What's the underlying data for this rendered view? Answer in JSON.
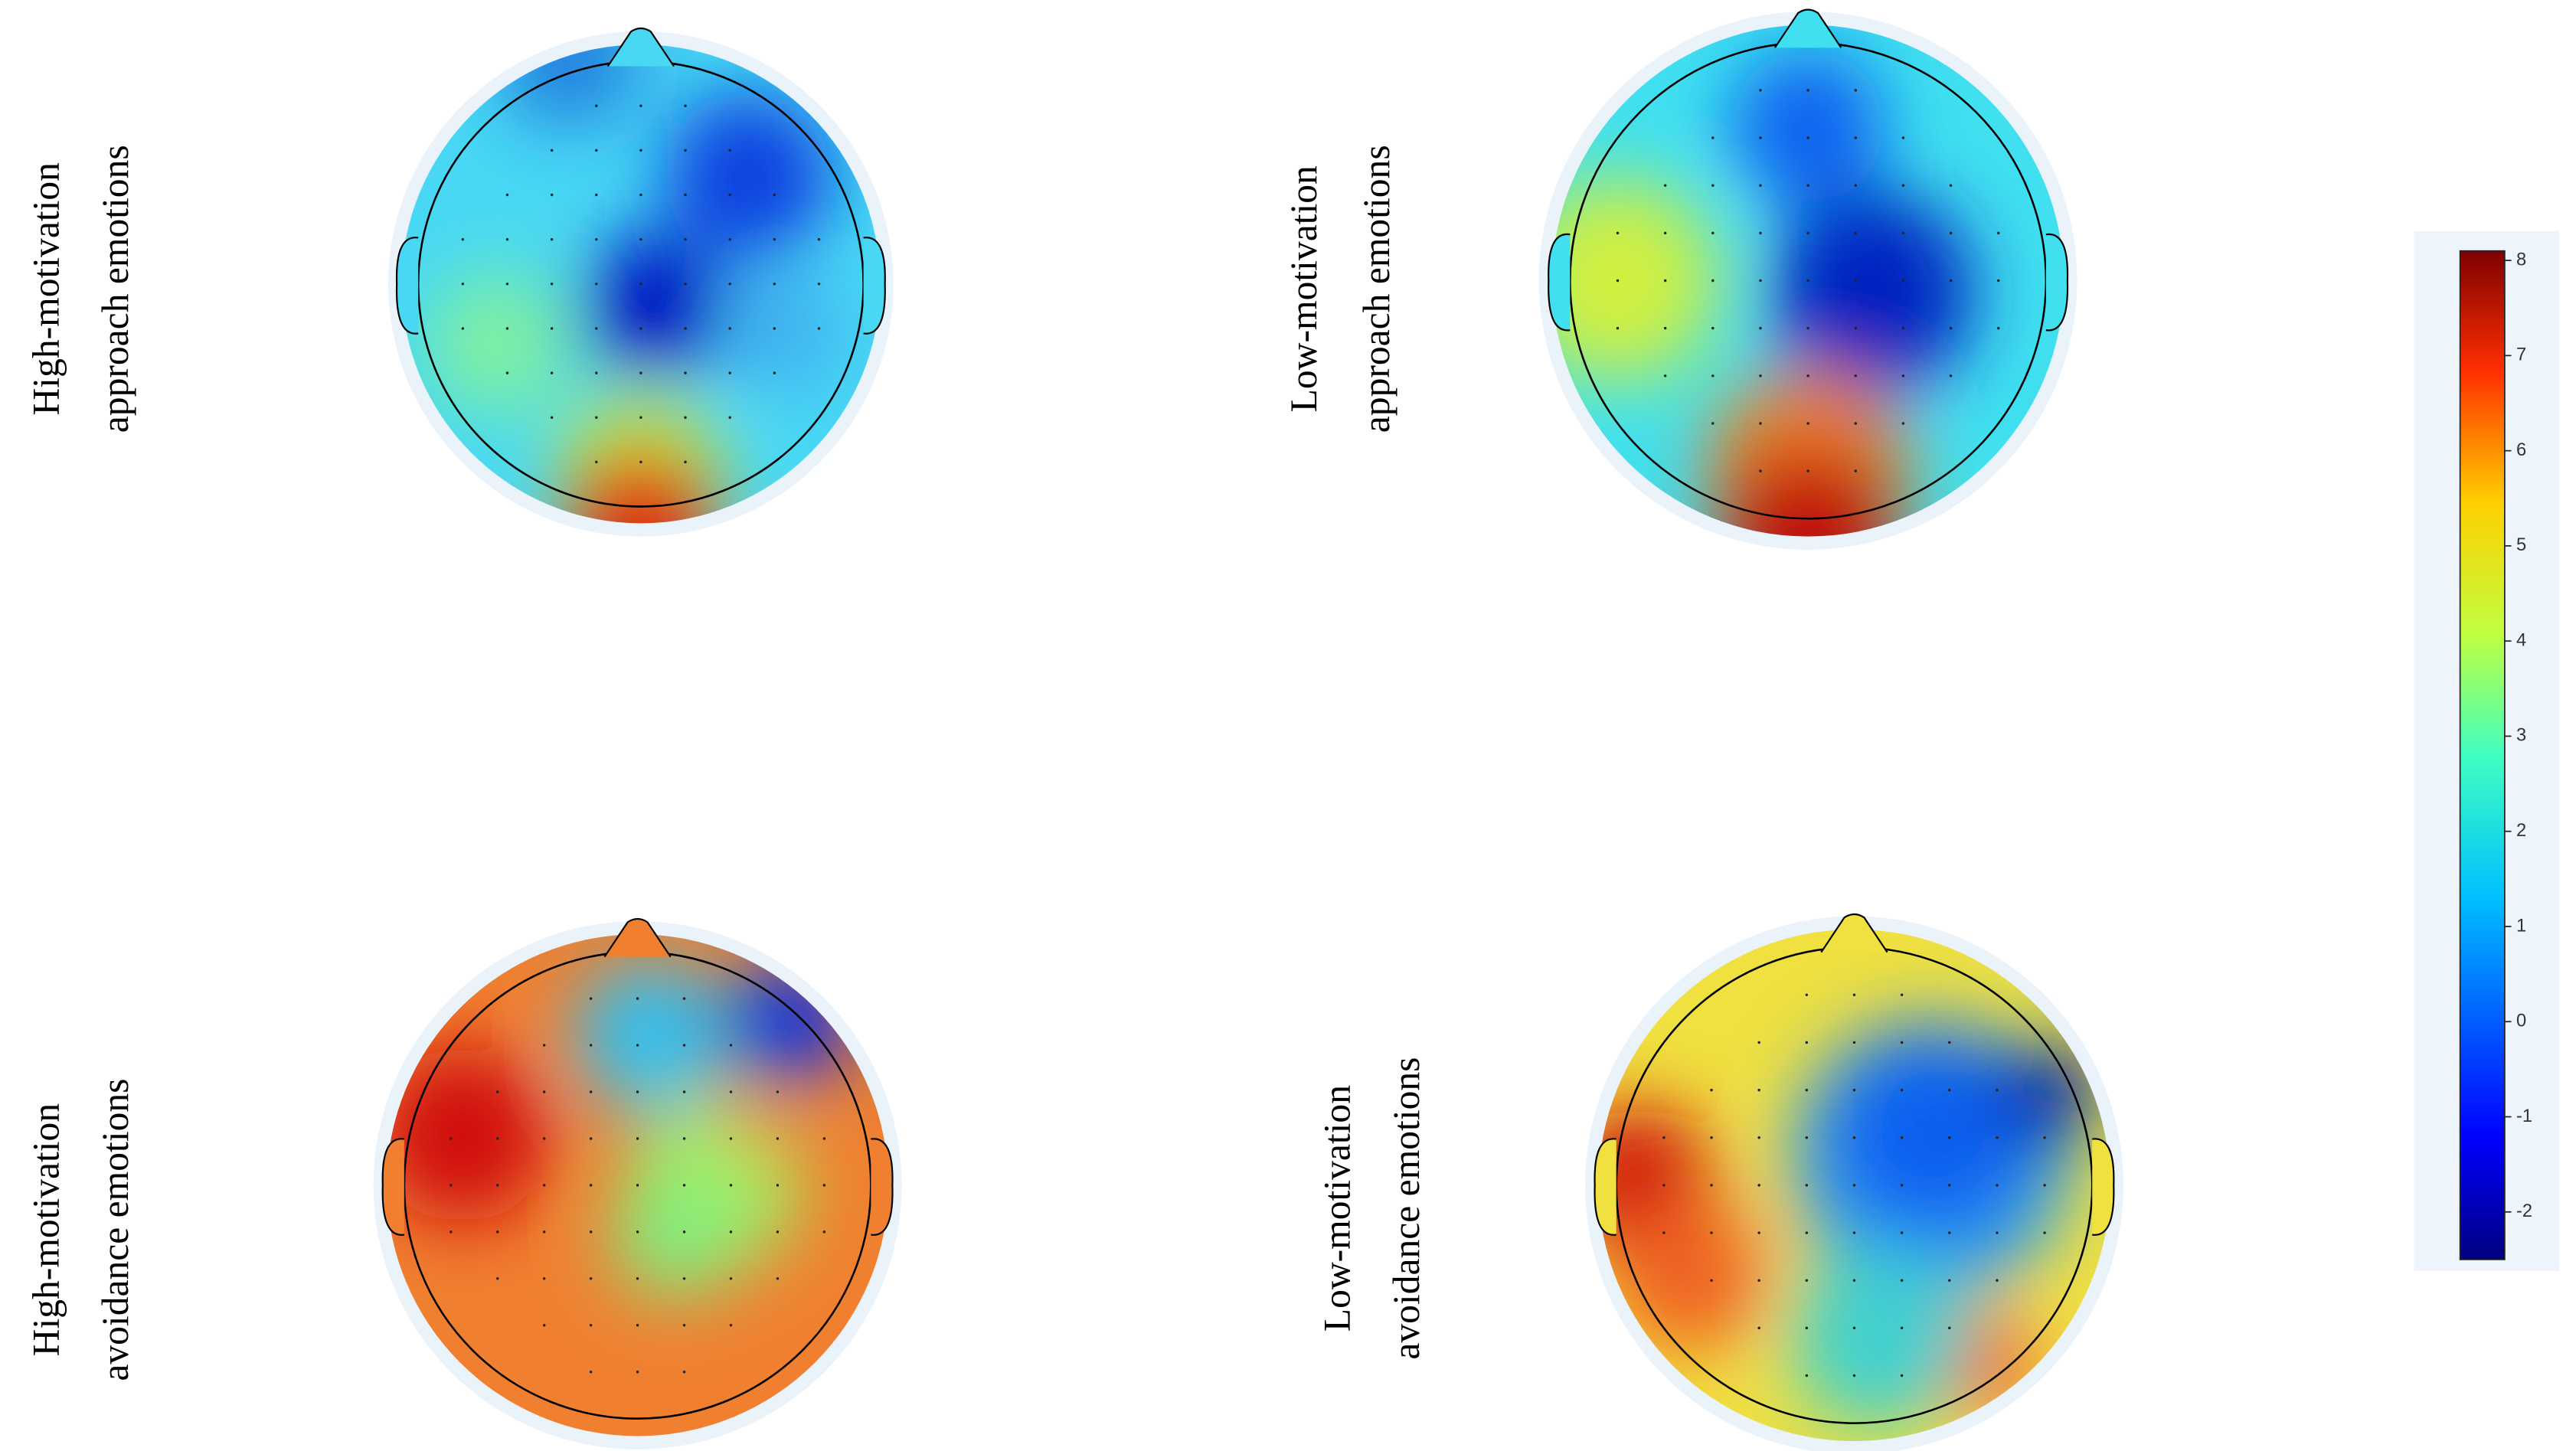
{
  "panels": [
    {
      "label_lines": [
        "High-motivation",
        "approach emotions"
      ]
    },
    {
      "label_lines": [
        "Low-motivation",
        "approach emotions"
      ]
    },
    {
      "label_lines": [
        "High-motivation",
        "avoidance emotions"
      ]
    },
    {
      "label_lines": [
        "Low-motivation",
        "avoidance emotions"
      ]
    }
  ],
  "colorbar": {
    "range": [
      -2.5,
      8.1
    ],
    "ticks": [
      8,
      7,
      6,
      5,
      4,
      3,
      2,
      1,
      0,
      -1,
      -2
    ]
  }
}
